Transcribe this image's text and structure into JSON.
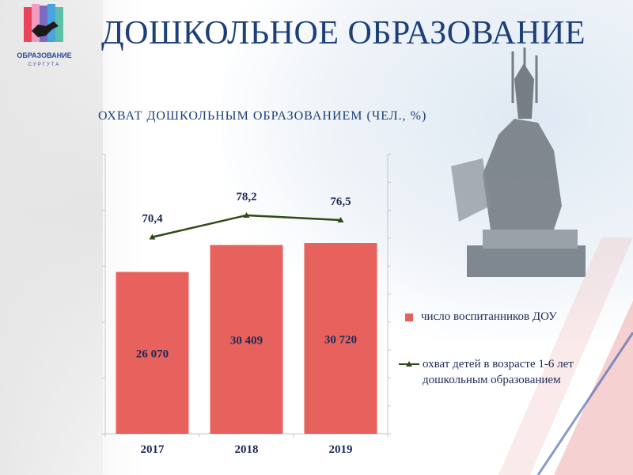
{
  "header": {
    "title": "ДОШКОЛЬНОЕ ОБРАЗОВАНИЕ",
    "logo_text": "ОБРАЗОВАНИЕ",
    "logo_subtext": "СУРГУТА"
  },
  "colors": {
    "title": "#1c3f78",
    "bar": "#e8625d",
    "line": "#2e4a17",
    "label": "#1c2a55"
  },
  "chart_data": {
    "type": "bar",
    "title": "ОХВАТ ДОШКОЛЬНЫМ ОБРАЗОВАНИЕМ (ЧЕЛ., %)",
    "categories": [
      "2017",
      "2018",
      "2019"
    ],
    "series": [
      {
        "name": "число воспитанников ДОУ",
        "type": "bar",
        "axis": "left",
        "values": [
          26070,
          30409,
          30720
        ],
        "labels": [
          "26 070",
          "30 409",
          "30 720"
        ]
      },
      {
        "name": "охват детей в возрасте 1-6 лет дошкольным образованием",
        "type": "line",
        "axis": "right",
        "values": [
          70.4,
          78.2,
          76.5
        ],
        "labels": [
          "70,4",
          "78,2",
          "76,5"
        ]
      }
    ],
    "ylim": [
      0,
      45000
    ],
    "y2lim": [
      0,
      100
    ],
    "grid": false,
    "legend_position": "right"
  }
}
